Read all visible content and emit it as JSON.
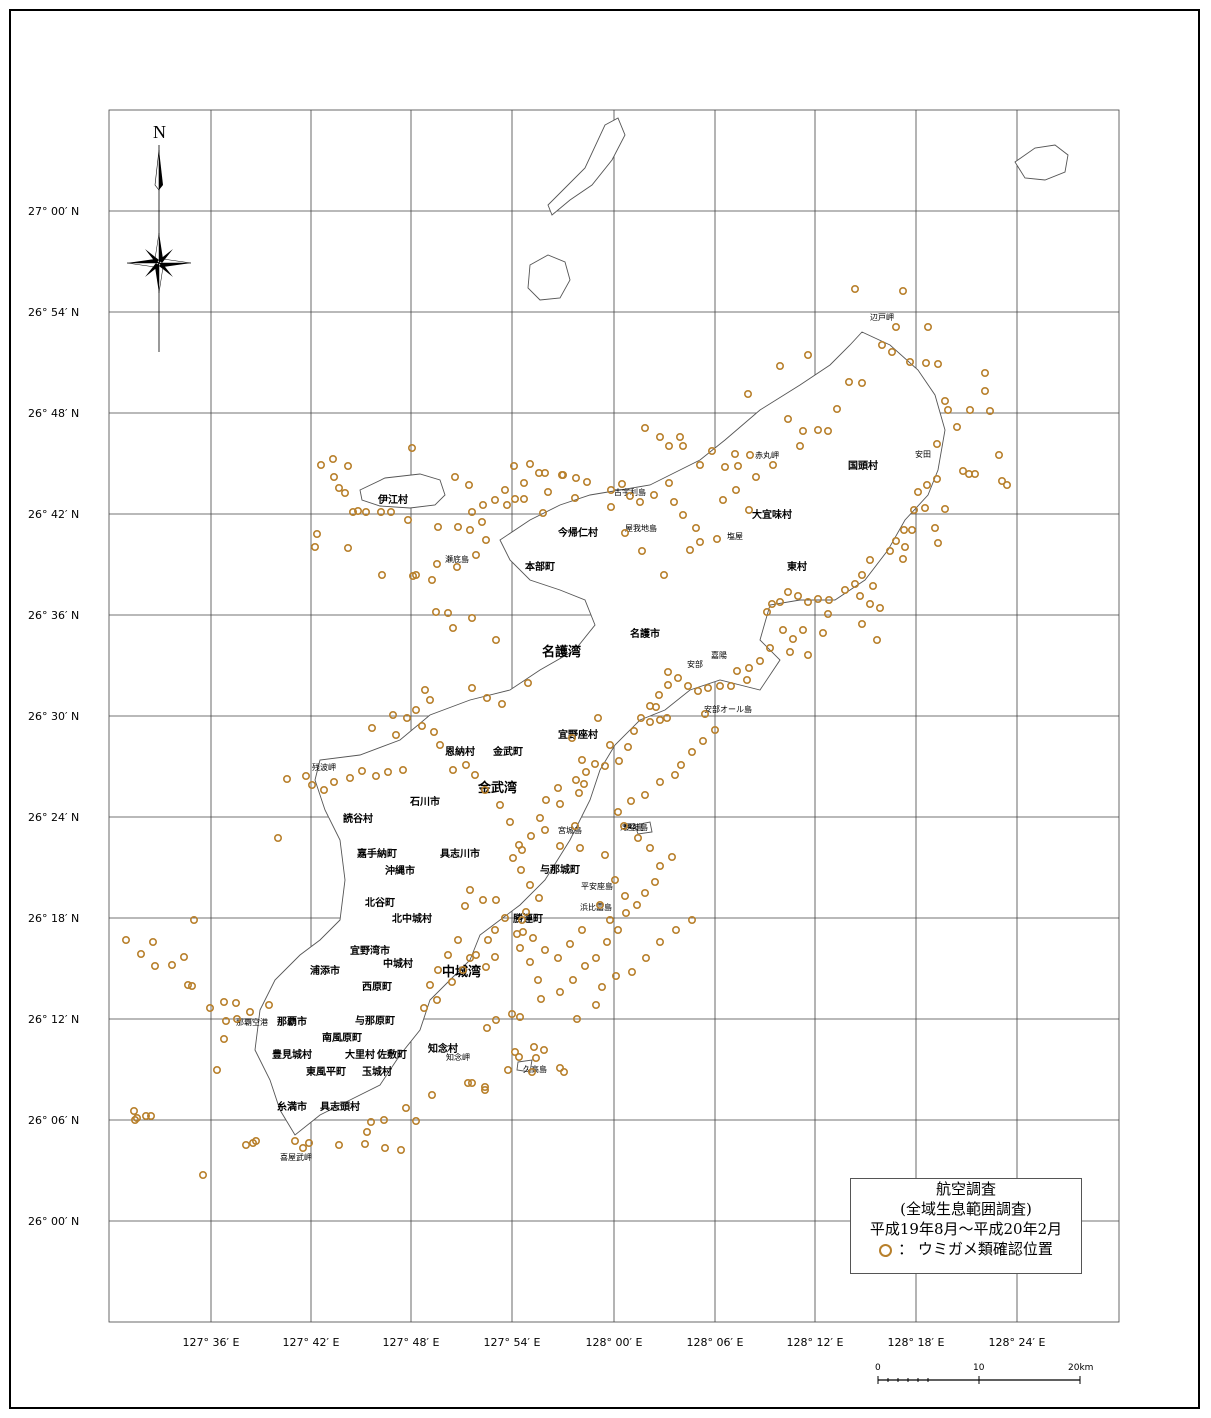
{
  "map": {
    "north_label": "N",
    "lat_labels": [
      "27° 00′ N",
      "26° 54′ N",
      "26° 48′ N",
      "26° 42′ N",
      "26° 36′ N",
      "26° 30′ N",
      "26° 24′ N",
      "26° 18′ N",
      "26° 12′ N",
      "26° 06′ N",
      "26° 00′ N"
    ],
    "lon_labels": [
      "127° 36′ E",
      "127° 42′ E",
      "127° 48′ E",
      "127° 54′ E",
      "128° 00′ E",
      "128° 06′ E",
      "128° 12′ E",
      "128° 18′ E",
      "128° 24′ E"
    ],
    "scale_bar": {
      "labels": [
        "0",
        "10",
        "20km"
      ]
    },
    "bays": [
      "名護湾",
      "金武湾",
      "中城湾"
    ],
    "places": [
      "伊江村",
      "今帰仁村",
      "本部町",
      "名護市",
      "大宜味村",
      "東村",
      "国頭村",
      "恩納村",
      "金武町",
      "宜野座村",
      "石川市",
      "読谷村",
      "嘉手納町",
      "具志川市",
      "沖縄市",
      "北谷町",
      "北中城村",
      "勝連町",
      "与那城町",
      "宜野湾市",
      "浦添市",
      "中城村",
      "西原町",
      "那覇市",
      "与那原町",
      "南風原町",
      "豊見城村",
      "大里村",
      "佐敷町",
      "知念村",
      "東風平町",
      "玉城村",
      "糸満市",
      "具志頭村"
    ],
    "small_labels": [
      "瀬底島",
      "古宇利島",
      "屋我地島",
      "安部",
      "嘉陽",
      "安部オール島",
      "宮城島",
      "平安座島",
      "浜比嘉島",
      "津堅島",
      "久高島",
      "辺戸岬",
      "安田",
      "塩屋",
      "赤丸岬",
      "残波岬",
      "喜屋武岬",
      "知念岬",
      "那覇空港",
      "伊計島"
    ],
    "marker_color": "#b8802c"
  },
  "legend": {
    "title": "航空調査",
    "subtitle": "(全域生息範囲調査)",
    "period": "平成19年8月～平成20年2月",
    "symbol_sep": "：",
    "symbol_label": "ウミガメ類確認位置"
  }
}
